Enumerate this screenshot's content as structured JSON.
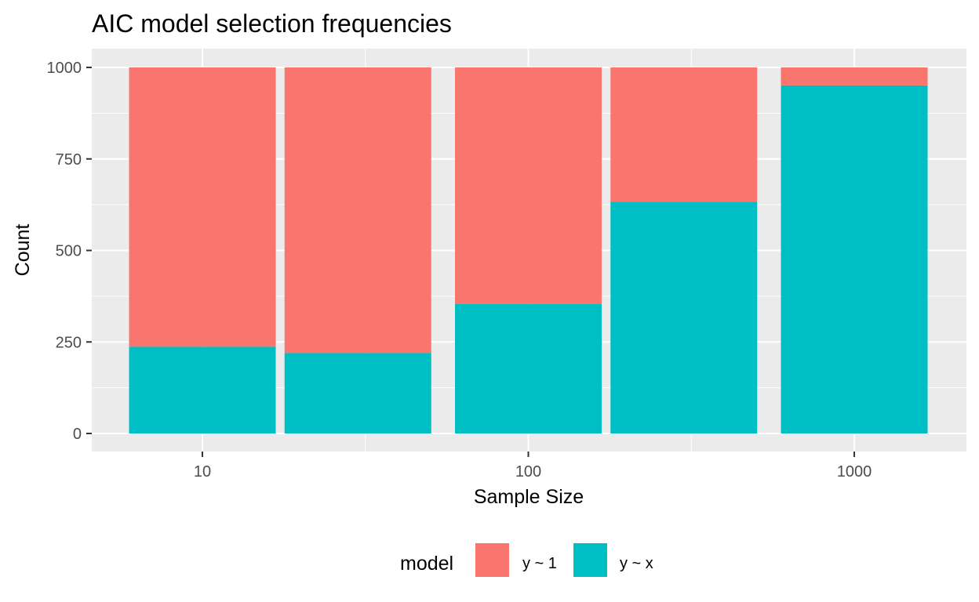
{
  "chart_data": {
    "type": "bar",
    "stacked": true,
    "title": "AIC model selection frequencies",
    "xlabel": "Sample Size",
    "ylabel": "Count",
    "x_scale": "log10",
    "x_ticks": [
      "10",
      "100",
      "1000"
    ],
    "y_ticks": [
      "0",
      "250",
      "500",
      "750",
      "1000"
    ],
    "ylim": [
      0,
      1000
    ],
    "categories": [
      "10",
      "30",
      "100",
      "300",
      "1000"
    ],
    "series": [
      {
        "name": "y ~ x",
        "color": "#00BFC4",
        "values": [
          237,
          220,
          354,
          633,
          951
        ]
      },
      {
        "name": "y ~ 1",
        "color": "#F8766D",
        "values": [
          763,
          780,
          646,
          367,
          49
        ]
      }
    ],
    "grid": true,
    "panel_background": "#EBEBEB",
    "legend": {
      "title": "model",
      "position": "bottom",
      "entries": [
        "y ~ 1",
        "y ~ x"
      ]
    }
  }
}
